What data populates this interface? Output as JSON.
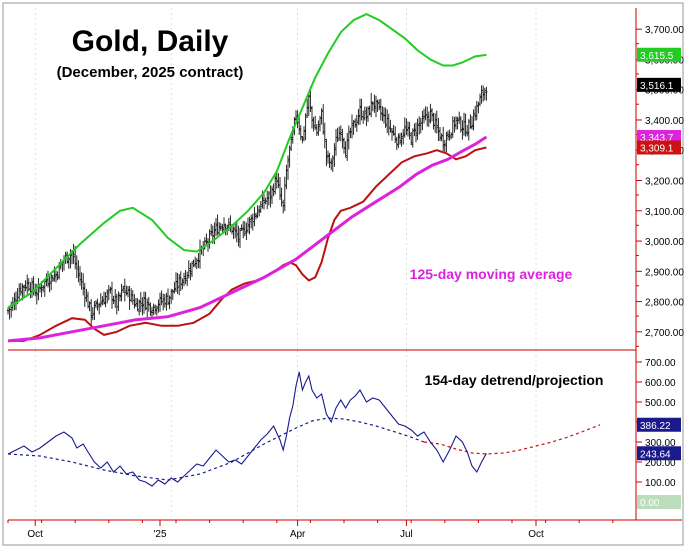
{
  "title": "Gold, Daily",
  "subtitle": "(December, 2025 contract)",
  "annotations": {
    "ma_label": "125-day moving average",
    "detrend_label": "154-day detrend/projection"
  },
  "colors": {
    "background": "#ffffff",
    "price_bars": "#111111",
    "upper_band": "#22cc22",
    "lower_band": "#bb1111",
    "moving_average": "#dd22dd",
    "oscillator": "#1a1a8c",
    "projection_blue": "#1a1a8c",
    "projection_red": "#cc1111",
    "axis": "#cc0000",
    "grid": "#cccccc"
  },
  "chart_data": [
    {
      "type": "ohlc",
      "panel": "price",
      "x_tick_labels": [
        "Oct",
        "'25",
        "Apr",
        "Jul",
        "Oct"
      ],
      "y_tick_labels": [
        "3,700.00",
        "3,600.00",
        "3,500.00",
        "3,400.00",
        "3,300.00",
        "3,200.00",
        "3,100.00",
        "3,000.00",
        "2,900.00",
        "2,800.00",
        "2,700.00"
      ],
      "ylim": [
        2640,
        3770
      ],
      "last_value_badges": [
        {
          "series": "upper_band",
          "label": "3,615.5",
          "value": 3615.5,
          "bg": "#22cc22",
          "fg": "#ffffff"
        },
        {
          "series": "price",
          "label": "3,516.1",
          "value": 3516.1,
          "bg": "#000000",
          "fg": "#ffffff"
        },
        {
          "series": "moving_average",
          "label": "3,343.7",
          "value": 3343.7,
          "bg": "#dd22dd",
          "fg": "#ffffff"
        },
        {
          "series": "lower_band",
          "label": "3,309.1",
          "value": 3309.1,
          "bg": "#cc1111",
          "fg": "#ffffff"
        }
      ],
      "close_path": [
        [
          0,
          2770
        ],
        [
          3,
          2790
        ],
        [
          7,
          2840
        ],
        [
          12,
          2860
        ],
        [
          18,
          2830
        ],
        [
          24,
          2870
        ],
        [
          30,
          2890
        ],
        [
          35,
          2940
        ],
        [
          40,
          2960
        ],
        [
          44,
          2890
        ],
        [
          48,
          2830
        ],
        [
          52,
          2760
        ],
        [
          56,
          2790
        ],
        [
          60,
          2810
        ],
        [
          64,
          2830
        ],
        [
          68,
          2790
        ],
        [
          72,
          2840
        ],
        [
          76,
          2820
        ],
        [
          80,
          2790
        ],
        [
          85,
          2800
        ],
        [
          90,
          2780
        ],
        [
          95,
          2800
        ],
        [
          100,
          2810
        ],
        [
          105,
          2850
        ],
        [
          110,
          2880
        ],
        [
          115,
          2920
        ],
        [
          120,
          2960
        ],
        [
          125,
          3000
        ],
        [
          130,
          3040
        ],
        [
          135,
          3060
        ],
        [
          140,
          3040
        ],
        [
          144,
          3010
        ],
        [
          148,
          3040
        ],
        [
          152,
          3070
        ],
        [
          156,
          3100
        ],
        [
          160,
          3130
        ],
        [
          164,
          3150
        ],
        [
          166,
          3180
        ],
        [
          168,
          3210
        ],
        [
          170,
          3140
        ],
        [
          172,
          3110
        ],
        [
          174,
          3230
        ],
        [
          176,
          3300
        ],
        [
          178,
          3350
        ],
        [
          180,
          3420
        ],
        [
          182,
          3380
        ],
        [
          184,
          3330
        ],
        [
          186,
          3410
        ],
        [
          188,
          3470
        ],
        [
          190,
          3400
        ],
        [
          193,
          3360
        ],
        [
          196,
          3420
        ],
        [
          199,
          3280
        ],
        [
          202,
          3250
        ],
        [
          205,
          3330
        ],
        [
          208,
          3370
        ],
        [
          211,
          3300
        ],
        [
          214,
          3360
        ],
        [
          217,
          3390
        ],
        [
          220,
          3430
        ],
        [
          224,
          3410
        ],
        [
          228,
          3460
        ],
        [
          232,
          3430
        ],
        [
          236,
          3400
        ],
        [
          240,
          3360
        ],
        [
          244,
          3330
        ],
        [
          248,
          3370
        ],
        [
          252,
          3340
        ],
        [
          256,
          3380
        ],
        [
          260,
          3400
        ],
        [
          264,
          3420
        ],
        [
          268,
          3370
        ],
        [
          272,
          3330
        ],
        [
          276,
          3360
        ],
        [
          280,
          3400
        ],
        [
          284,
          3380
        ],
        [
          287,
          3370
        ],
        [
          290,
          3400
        ],
        [
          293,
          3440
        ],
        [
          296,
          3480
        ],
        [
          299,
          3510
        ]
      ],
      "upper_band": [
        [
          0,
          2780
        ],
        [
          15,
          2830
        ],
        [
          30,
          2910
        ],
        [
          45,
          2990
        ],
        [
          60,
          3060
        ],
        [
          70,
          3100
        ],
        [
          78,
          3110
        ],
        [
          90,
          3070
        ],
        [
          100,
          3010
        ],
        [
          110,
          2970
        ],
        [
          118,
          2965
        ],
        [
          128,
          3000
        ],
        [
          140,
          3050
        ],
        [
          150,
          3100
        ],
        [
          160,
          3160
        ],
        [
          168,
          3230
        ],
        [
          176,
          3340
        ],
        [
          184,
          3440
        ],
        [
          192,
          3540
        ],
        [
          200,
          3620
        ],
        [
          208,
          3690
        ],
        [
          216,
          3730
        ],
        [
          224,
          3750
        ],
        [
          232,
          3730
        ],
        [
          240,
          3700
        ],
        [
          248,
          3670
        ],
        [
          256,
          3630
        ],
        [
          264,
          3600
        ],
        [
          272,
          3580
        ],
        [
          278,
          3580
        ],
        [
          284,
          3590
        ],
        [
          292,
          3610
        ],
        [
          299,
          3615
        ]
      ],
      "lower_band": [
        [
          0,
          2670
        ],
        [
          10,
          2670
        ],
        [
          20,
          2690
        ],
        [
          30,
          2720
        ],
        [
          40,
          2745
        ],
        [
          48,
          2740
        ],
        [
          54,
          2710
        ],
        [
          60,
          2690
        ],
        [
          68,
          2700
        ],
        [
          76,
          2720
        ],
        [
          86,
          2730
        ],
        [
          96,
          2720
        ],
        [
          106,
          2720
        ],
        [
          116,
          2730
        ],
        [
          126,
          2760
        ],
        [
          134,
          2810
        ],
        [
          140,
          2840
        ],
        [
          148,
          2860
        ],
        [
          156,
          2870
        ],
        [
          164,
          2890
        ],
        [
          172,
          2920
        ],
        [
          176,
          2930
        ],
        [
          180,
          2920
        ],
        [
          184,
          2890
        ],
        [
          188,
          2870
        ],
        [
          192,
          2880
        ],
        [
          196,
          2930
        ],
        [
          200,
          3010
        ],
        [
          204,
          3070
        ],
        [
          208,
          3100
        ],
        [
          214,
          3110
        ],
        [
          222,
          3130
        ],
        [
          230,
          3180
        ],
        [
          238,
          3220
        ],
        [
          246,
          3260
        ],
        [
          254,
          3280
        ],
        [
          262,
          3290
        ],
        [
          268,
          3300
        ],
        [
          274,
          3290
        ],
        [
          280,
          3270
        ],
        [
          286,
          3280
        ],
        [
          292,
          3300
        ],
        [
          299,
          3309
        ]
      ],
      "moving_average": [
        [
          0,
          2670
        ],
        [
          20,
          2680
        ],
        [
          40,
          2700
        ],
        [
          60,
          2720
        ],
        [
          80,
          2740
        ],
        [
          100,
          2750
        ],
        [
          120,
          2780
        ],
        [
          140,
          2830
        ],
        [
          160,
          2880
        ],
        [
          180,
          2940
        ],
        [
          200,
          3020
        ],
        [
          215,
          3080
        ],
        [
          230,
          3130
        ],
        [
          245,
          3180
        ],
        [
          255,
          3220
        ],
        [
          265,
          3250
        ],
        [
          275,
          3270
        ],
        [
          285,
          3300
        ],
        [
          292,
          3320
        ],
        [
          299,
          3343.7
        ]
      ]
    },
    {
      "type": "line",
      "panel": "detrend",
      "y_tick_labels": [
        "700.00",
        "600.00",
        "500.00",
        "400.00",
        "300.00",
        "200.00",
        "100.00"
      ],
      "ylim": [
        -90,
        760
      ],
      "last_value_badges": [
        {
          "series": "projection",
          "label": "386.22",
          "value": 386.22,
          "bg": "#1a1a8c",
          "fg": "#ffffff"
        },
        {
          "series": "oscillator",
          "label": "243.64",
          "value": 243.64,
          "bg": "#1a1a8c",
          "fg": "#ffffff"
        },
        {
          "series": "zero",
          "label": "0.00",
          "value": 0,
          "bg": "#bbddbb",
          "fg": "#ffffff"
        }
      ],
      "oscillator": [
        [
          0,
          240
        ],
        [
          5,
          260
        ],
        [
          10,
          280
        ],
        [
          15,
          250
        ],
        [
          20,
          270
        ],
        [
          25,
          300
        ],
        [
          30,
          330
        ],
        [
          35,
          350
        ],
        [
          40,
          320
        ],
        [
          43,
          270
        ],
        [
          47,
          290
        ],
        [
          50,
          250
        ],
        [
          54,
          200
        ],
        [
          58,
          170
        ],
        [
          62,
          200
        ],
        [
          66,
          150
        ],
        [
          70,
          180
        ],
        [
          74,
          140
        ],
        [
          78,
          150
        ],
        [
          82,
          110
        ],
        [
          86,
          100
        ],
        [
          90,
          80
        ],
        [
          94,
          110
        ],
        [
          98,
          90
        ],
        [
          102,
          120
        ],
        [
          106,
          100
        ],
        [
          110,
          130
        ],
        [
          114,
          160
        ],
        [
          118,
          190
        ],
        [
          122,
          180
        ],
        [
          126,
          220
        ],
        [
          130,
          260
        ],
        [
          134,
          230
        ],
        [
          138,
          200
        ],
        [
          142,
          210
        ],
        [
          146,
          190
        ],
        [
          150,
          230
        ],
        [
          154,
          270
        ],
        [
          158,
          310
        ],
        [
          162,
          340
        ],
        [
          166,
          380
        ],
        [
          170,
          310
        ],
        [
          172,
          260
        ],
        [
          174,
          330
        ],
        [
          176,
          420
        ],
        [
          178,
          480
        ],
        [
          180,
          580
        ],
        [
          182,
          650
        ],
        [
          184,
          560
        ],
        [
          186,
          600
        ],
        [
          188,
          630
        ],
        [
          190,
          560
        ],
        [
          193,
          520
        ],
        [
          196,
          540
        ],
        [
          199,
          440
        ],
        [
          202,
          400
        ],
        [
          205,
          470
        ],
        [
          208,
          510
        ],
        [
          211,
          470
        ],
        [
          214,
          510
        ],
        [
          217,
          530
        ],
        [
          220,
          560
        ],
        [
          224,
          500
        ],
        [
          228,
          520
        ],
        [
          232,
          510
        ],
        [
          236,
          470
        ],
        [
          240,
          430
        ],
        [
          244,
          390
        ],
        [
          248,
          380
        ],
        [
          252,
          360
        ],
        [
          256,
          330
        ],
        [
          260,
          350
        ],
        [
          264,
          300
        ],
        [
          268,
          260
        ],
        [
          272,
          200
        ],
        [
          276,
          260
        ],
        [
          280,
          330
        ],
        [
          284,
          300
        ],
        [
          287,
          250
        ],
        [
          290,
          180
        ],
        [
          293,
          150
        ],
        [
          296,
          200
        ],
        [
          299,
          243.64
        ]
      ],
      "projection_blue": [
        [
          0,
          240
        ],
        [
          20,
          230
        ],
        [
          40,
          200
        ],
        [
          60,
          160
        ],
        [
          80,
          130
        ],
        [
          100,
          110
        ],
        [
          120,
          140
        ],
        [
          140,
          200
        ],
        [
          160,
          290
        ],
        [
          180,
          370
        ],
        [
          190,
          405
        ],
        [
          200,
          420
        ],
        [
          210,
          415
        ],
        [
          220,
          400
        ],
        [
          230,
          380
        ],
        [
          240,
          355
        ],
        [
          250,
          330
        ],
        [
          260,
          300
        ]
      ],
      "projection_red": [
        [
          260,
          300
        ],
        [
          270,
          290
        ],
        [
          280,
          265
        ],
        [
          290,
          245
        ],
        [
          299,
          240
        ],
        [
          310,
          245
        ],
        [
          320,
          260
        ],
        [
          330,
          280
        ],
        [
          340,
          300
        ],
        [
          350,
          325
        ],
        [
          360,
          355
        ],
        [
          370,
          386.22
        ]
      ]
    }
  ]
}
